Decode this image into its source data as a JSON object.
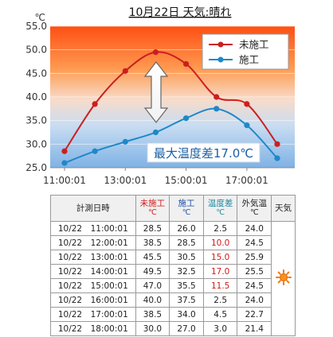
{
  "chart_data": {
    "type": "line",
    "title": "10月22日 天気:晴れ",
    "y_unit": "℃",
    "x": [
      "11:00:01",
      "12:00:01",
      "13:00:01",
      "14:00:01",
      "15:00:01",
      "16:00:01",
      "17:00:01",
      "18:00:01"
    ],
    "x_tick_labels": [
      "11:00:01",
      "13:00:01",
      "15:00:01",
      "17:00:01"
    ],
    "ylim": [
      25.0,
      55.0
    ],
    "y_ticks": [
      "25.0",
      "30.0",
      "35.0",
      "40.0",
      "45.0",
      "50.0",
      "55.0"
    ],
    "grid": true,
    "legend_position": "top-right",
    "series": [
      {
        "name": "未施工",
        "color": "#cc1f1f",
        "values": [
          28.5,
          38.5,
          45.5,
          49.5,
          47.0,
          40.0,
          38.5,
          30.0
        ]
      },
      {
        "name": "施工",
        "color": "#1f88c9",
        "values": [
          26.0,
          28.5,
          30.5,
          32.5,
          35.5,
          37.5,
          34.0,
          27.0
        ]
      }
    ],
    "annotation": "最大温度差17.0℃"
  },
  "table": {
    "headers": [
      {
        "label": "計測日時",
        "unit": ""
      },
      {
        "label": "未施工",
        "unit": "℃"
      },
      {
        "label": "施工",
        "unit": "℃"
      },
      {
        "label": "温度差",
        "unit": "℃"
      },
      {
        "label": "外気温",
        "unit": "℃"
      },
      {
        "label": "天気",
        "unit": ""
      }
    ],
    "rows": [
      {
        "datetime": "10/22　11:00:01",
        "untreated": "28.5",
        "treated": "26.0",
        "diff": "2.5",
        "outside": "24.0"
      },
      {
        "datetime": "10/22　12:00:01",
        "untreated": "38.5",
        "treated": "28.5",
        "diff": "10.0",
        "outside": "24.5"
      },
      {
        "datetime": "10/22　13:00:01",
        "untreated": "45.5",
        "treated": "30.5",
        "diff": "15.0",
        "outside": "25.9"
      },
      {
        "datetime": "10/22　14:00:01",
        "untreated": "49.5",
        "treated": "32.5",
        "diff": "17.0",
        "outside": "25.5"
      },
      {
        "datetime": "10/22　15:00:01",
        "untreated": "47.0",
        "treated": "35.5",
        "diff": "11.5",
        "outside": "24.5"
      },
      {
        "datetime": "10/22　16:00:01",
        "untreated": "40.0",
        "treated": "37.5",
        "diff": "2.5",
        "outside": "24.0"
      },
      {
        "datetime": "10/22　17:00:01",
        "untreated": "38.5",
        "treated": "34.0",
        "diff": "4.5",
        "outside": "22.7"
      },
      {
        "datetime": "10/22　18:00:01",
        "untreated": "30.0",
        "treated": "27.0",
        "diff": "3.0",
        "outside": "21.4"
      }
    ],
    "highlight_diff_min": 10.0,
    "weather_icon": "sun-icon",
    "colors": {
      "untreated": "#d21a1a",
      "treated": "#1f4fa8",
      "diff": "#1e8aa0"
    }
  }
}
